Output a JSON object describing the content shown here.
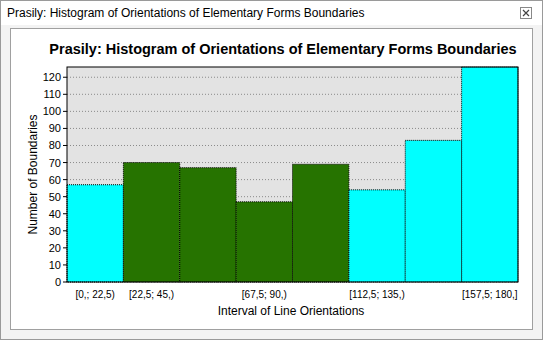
{
  "chart_data": {
    "type": "bar",
    "window_title": "Prasily: Histogram of Orientations of Elementary Forms Boundaries",
    "title": "Prasily: Histogram of Orientations of Elementary Forms Boundaries",
    "x_label": "Interval of Line Orientations",
    "y_label": "Number of Boundaries",
    "categories": [
      "[0,; 22,5)",
      "[22,5; 45,)",
      null,
      "[67,5; 90,)",
      null,
      "[112,5; 135,)",
      null,
      "[157,5; 180,]"
    ],
    "values": [
      57,
      70,
      67,
      47,
      69,
      54,
      83,
      126
    ],
    "colors": [
      "#00ffff",
      "#267300",
      "#267300",
      "#267300",
      "#267300",
      "#00ffff",
      "#00ffff",
      "#00ffff"
    ],
    "ylim": [
      0,
      126
    ],
    "yticks": [
      0,
      10,
      20,
      30,
      40,
      50,
      60,
      70,
      80,
      90,
      100,
      110,
      120
    ],
    "grid": true
  }
}
